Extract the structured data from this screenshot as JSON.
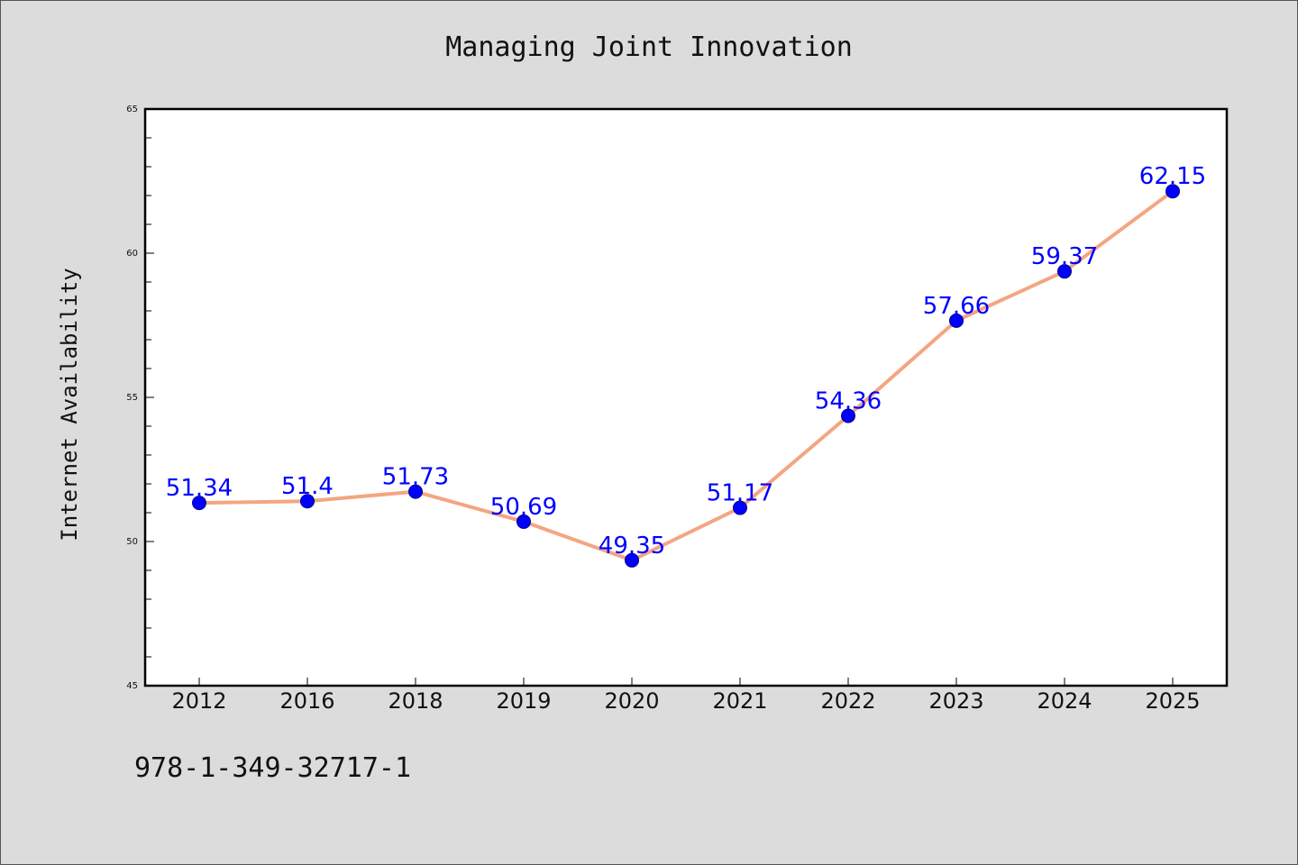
{
  "chart_data": {
    "type": "line",
    "title": "Managing Joint Innovation",
    "xlabel": "",
    "ylabel": "Internet Availability",
    "categories": [
      "2012",
      "2016",
      "2018",
      "2019",
      "2020",
      "2021",
      "2022",
      "2023",
      "2024",
      "2025"
    ],
    "series": [
      {
        "values": [
          51.34,
          51.4,
          51.73,
          50.69,
          49.35,
          51.17,
          54.36,
          57.66,
          59.37,
          62.15
        ],
        "labels": [
          "51.34",
          "51.4",
          "51.73",
          "50.69",
          "49.35",
          "51.17",
          "54.36",
          "57.66",
          "59.37",
          "62.15"
        ],
        "line_color": "#f4a582",
        "marker_color": "#0000ff"
      }
    ],
    "ylim": [
      45,
      65
    ],
    "yticks": [
      45,
      50,
      55,
      60,
      65
    ],
    "ytick_labels": [
      "45",
      "50",
      "55",
      "60",
      "65"
    ],
    "grid": false,
    "background": "#ffffff"
  },
  "footer": {
    "code": "978-1-349-32717-1"
  }
}
